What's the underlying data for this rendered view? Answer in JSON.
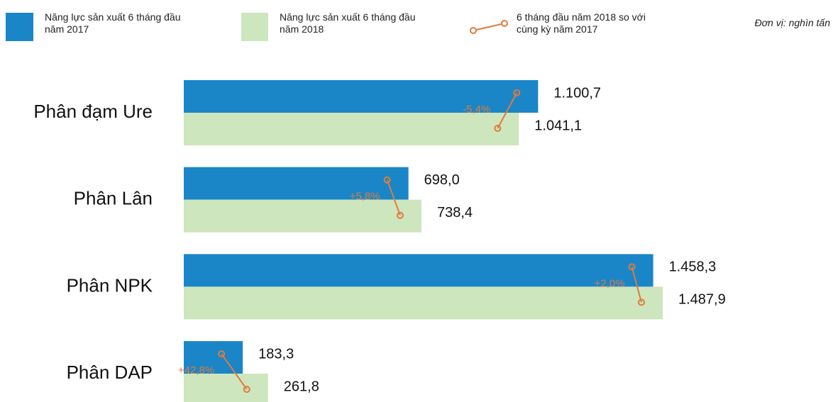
{
  "chart_data": {
    "type": "bar",
    "orientation": "horizontal",
    "unit_note": "Đơn vị: nghìn tấn",
    "categories": [
      "Phân đạm Ure",
      "Phân Lân",
      "Phân NPK",
      "Phân DAP"
    ],
    "series": [
      {
        "name": "Năng lực sản xuất 6 tháng đầu năm 2017",
        "color": "#1a86c7",
        "values": [
          1100.7,
          698.0,
          1458.3,
          183.3
        ],
        "value_labels": [
          "1.100,7",
          "698,0",
          "1.458,3",
          "183,3"
        ]
      },
      {
        "name": "Năng lực sản xuất 6 tháng đầu năm 2018",
        "color": "#cde6bd",
        "values": [
          1041.1,
          738.4,
          1487.9,
          261.8
        ],
        "value_labels": [
          "1.041,1",
          "738,4",
          "1.487,9",
          "261,8"
        ]
      }
    ],
    "change": {
      "name": "6 tháng đầu năm 2018 so với cùng kỳ năm 2017",
      "color": "#e07b3c",
      "values": [
        -5.4,
        5.8,
        2.0,
        42.8
      ],
      "value_labels": [
        "-5,4%",
        "+5,8%",
        "+2,0%",
        "+42,8%"
      ]
    }
  }
}
